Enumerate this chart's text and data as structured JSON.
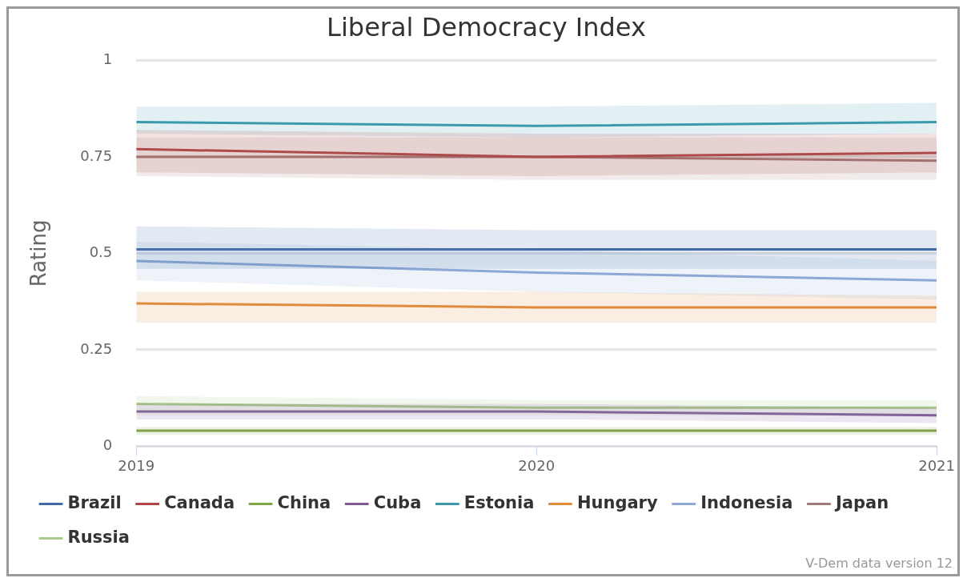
{
  "chart_data": {
    "type": "line",
    "title": "Liberal Democracy Index",
    "ylabel": "Rating",
    "x": [
      2019,
      2020,
      2021
    ],
    "xlim": [
      2019,
      2021
    ],
    "xticks": [
      2019,
      2020,
      2021
    ],
    "ylim": [
      0,
      1
    ],
    "yticks": [
      0,
      0.25,
      0.5,
      0.75,
      1
    ],
    "grid": "y",
    "legend": "bottom",
    "marker": "none",
    "line_style": "solid",
    "annotations": [
      "V-Dem data version 12"
    ],
    "series": [
      {
        "name": "Brazil",
        "color": "#3e6aa5",
        "values": [
          0.51,
          0.51,
          0.51
        ],
        "lower": [
          0.46,
          0.46,
          0.46
        ],
        "upper": [
          0.57,
          0.56,
          0.56
        ]
      },
      {
        "name": "Canada",
        "color": "#b04545",
        "values": [
          0.77,
          0.75,
          0.76
        ],
        "lower": [
          0.71,
          0.7,
          0.71
        ],
        "upper": [
          0.82,
          0.81,
          0.81
        ]
      },
      {
        "name": "China",
        "color": "#7fa347",
        "values": [
          0.04,
          0.04,
          0.04
        ],
        "lower": [
          0.03,
          0.03,
          0.03
        ],
        "upper": [
          0.05,
          0.05,
          0.05
        ]
      },
      {
        "name": "Cuba",
        "color": "#7f5a99",
        "values": [
          0.09,
          0.09,
          0.08
        ],
        "lower": [
          0.07,
          0.07,
          0.06
        ],
        "upper": [
          0.11,
          0.11,
          0.1
        ]
      },
      {
        "name": "Estonia",
        "color": "#3a9aad",
        "values": [
          0.84,
          0.83,
          0.84
        ],
        "lower": [
          0.81,
          0.8,
          0.81
        ],
        "upper": [
          0.88,
          0.88,
          0.89
        ]
      },
      {
        "name": "Hungary",
        "color": "#e08a3c",
        "values": [
          0.37,
          0.36,
          0.36
        ],
        "lower": [
          0.32,
          0.32,
          0.32
        ],
        "upper": [
          0.4,
          0.4,
          0.39
        ]
      },
      {
        "name": "Indonesia",
        "color": "#8fa8d5",
        "values": [
          0.48,
          0.45,
          0.43
        ],
        "lower": [
          0.43,
          0.4,
          0.38
        ],
        "upper": [
          0.53,
          0.51,
          0.48
        ]
      },
      {
        "name": "Japan",
        "color": "#a07a78",
        "values": [
          0.75,
          0.75,
          0.74
        ],
        "lower": [
          0.7,
          0.69,
          0.69
        ],
        "upper": [
          0.8,
          0.8,
          0.8
        ]
      },
      {
        "name": "Russia",
        "color": "#a9cc8a",
        "values": [
          0.11,
          0.1,
          0.1
        ],
        "lower": [
          0.08,
          0.08,
          0.08
        ],
        "upper": [
          0.13,
          0.12,
          0.12
        ]
      }
    ]
  }
}
